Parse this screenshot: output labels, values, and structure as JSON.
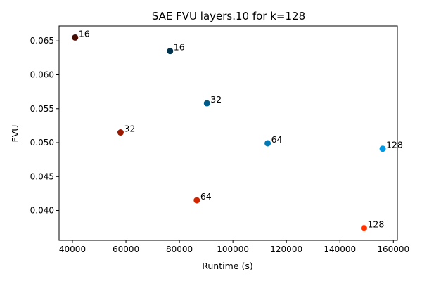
{
  "chart_data": {
    "type": "scatter",
    "title": "SAE FVU layers.10 for k=128",
    "xlabel": "Runtime (s)",
    "ylabel": "FVU",
    "xlim": [
      35000,
      161500
    ],
    "ylim": [
      0.0356,
      0.0672
    ],
    "x_ticks": [
      40000,
      60000,
      80000,
      100000,
      120000,
      140000,
      160000
    ],
    "x_tick_labels": [
      "40000",
      "60000",
      "80000",
      "100000",
      "120000",
      "140000",
      "160000"
    ],
    "y_ticks": [
      0.04,
      0.045,
      0.05,
      0.055,
      0.06,
      0.065
    ],
    "y_tick_labels": [
      "0.040",
      "0.045",
      "0.050",
      "0.055",
      "0.060",
      "0.065"
    ],
    "grid": false,
    "legend": false,
    "series": [
      {
        "points": [
          {
            "x": 41000,
            "y": 0.0655,
            "label": "16",
            "color": "#4a0c00"
          },
          {
            "x": 58000,
            "y": 0.0515,
            "label": "32",
            "color": "#9a1800"
          },
          {
            "x": 86500,
            "y": 0.0415,
            "label": "64",
            "color": "#d32400"
          },
          {
            "x": 149000,
            "y": 0.0374,
            "label": "128",
            "color": "#ff3300"
          }
        ]
      },
      {
        "points": [
          {
            "x": 76500,
            "y": 0.0635,
            "label": "16",
            "color": "#00334d"
          },
          {
            "x": 90300,
            "y": 0.0558,
            "label": "32",
            "color": "#005b89"
          },
          {
            "x": 113000,
            "y": 0.0499,
            "label": "64",
            "color": "#0079b7"
          },
          {
            "x": 156000,
            "y": 0.0491,
            "label": "128",
            "color": "#0099e6"
          }
        ]
      }
    ]
  }
}
